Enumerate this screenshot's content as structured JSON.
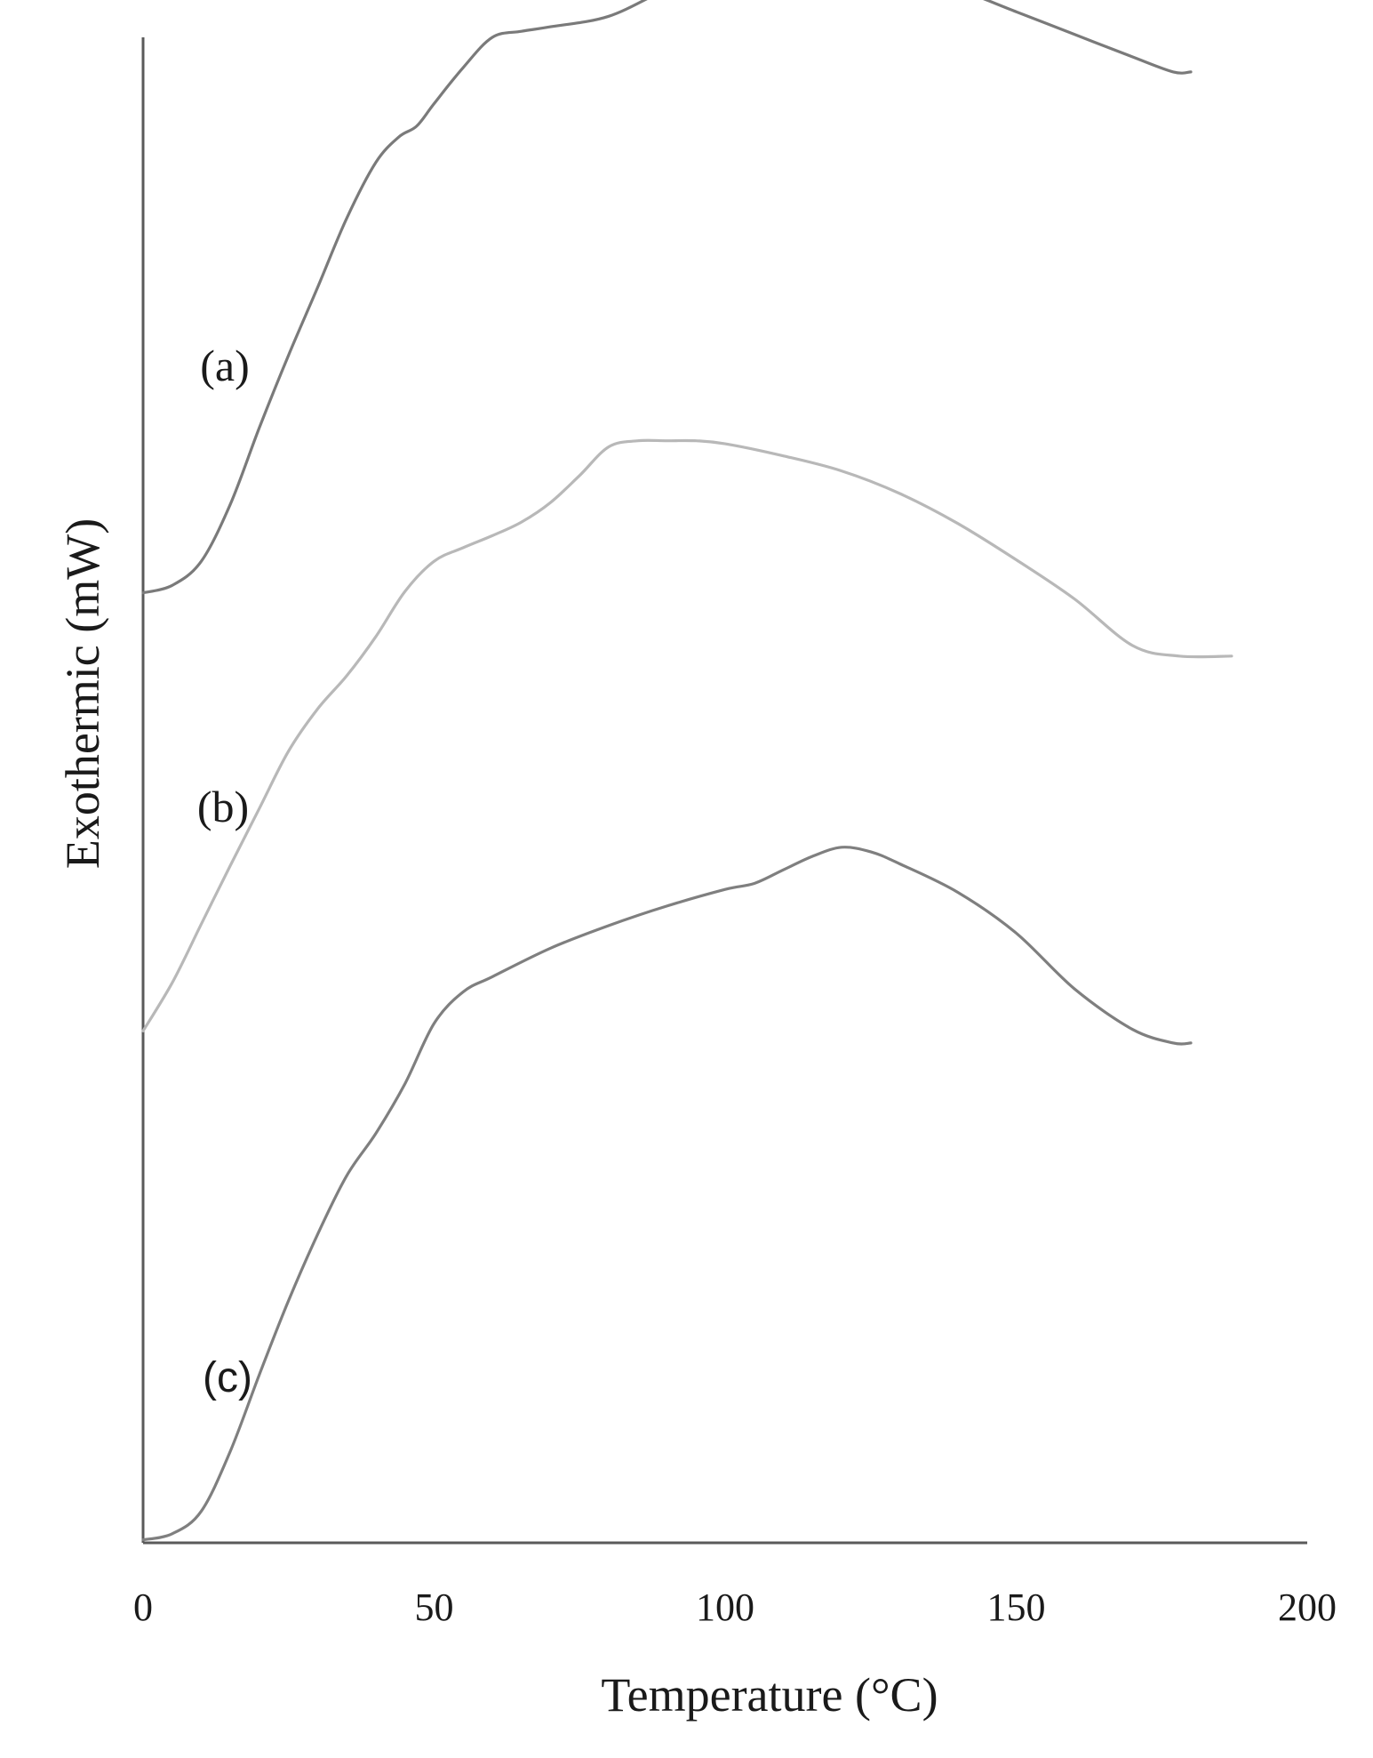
{
  "chart_data": {
    "type": "line",
    "xlabel": "Temperature (°C)",
    "ylabel": "Exothermic (mW)",
    "xlim": [
      0,
      200
    ],
    "x_ticks": [
      "0",
      "50",
      "100",
      "150",
      "200"
    ],
    "y_ticks": [],
    "grid": false,
    "legend": "none",
    "series": [
      {
        "label": "(a)",
        "color": "#7a7a7a",
        "x": [
          0,
          5,
          10,
          15,
          20,
          25,
          30,
          35,
          40,
          44,
          47,
          50,
          55,
          60,
          65,
          70,
          80,
          90,
          100,
          110,
          120,
          130,
          140,
          150,
          160,
          170,
          177,
          180
        ],
        "y": [
          0.631,
          0.636,
          0.652,
          0.69,
          0.741,
          0.789,
          0.834,
          0.88,
          0.917,
          0.934,
          0.941,
          0.956,
          0.98,
          1.0,
          1.004,
          1.007,
          1.014,
          1.032,
          1.047,
          1.054,
          1.052,
          1.043,
          1.032,
          1.017,
          1.002,
          0.987,
          0.977,
          0.977
        ]
      },
      {
        "label": "(b)",
        "color": "#b8b8b8",
        "x": [
          0,
          5,
          10,
          15,
          20,
          25,
          30,
          35,
          40,
          45,
          50,
          55,
          60,
          65,
          70,
          75,
          80,
          85,
          90,
          95,
          100,
          110,
          120,
          130,
          140,
          150,
          160,
          170,
          178,
          187
        ],
        "y": [
          0.34,
          0.372,
          0.411,
          0.45,
          0.488,
          0.526,
          0.554,
          0.576,
          0.602,
          0.632,
          0.652,
          0.661,
          0.669,
          0.678,
          0.691,
          0.709,
          0.728,
          0.732,
          0.732,
          0.732,
          0.73,
          0.722,
          0.712,
          0.697,
          0.677,
          0.653,
          0.627,
          0.596,
          0.589,
          0.589
        ]
      },
      {
        "label": "(c)",
        "color": "#7f7f7f",
        "x": [
          0,
          5,
          10,
          15,
          20,
          25,
          30,
          35,
          40,
          45,
          50,
          55,
          60,
          70,
          80,
          90,
          100,
          105,
          110,
          115,
          120,
          125,
          130,
          140,
          150,
          160,
          170,
          177,
          180
        ],
        "y": [
          0.002,
          0.006,
          0.021,
          0.061,
          0.112,
          0.161,
          0.205,
          0.244,
          0.272,
          0.305,
          0.345,
          0.366,
          0.376,
          0.395,
          0.41,
          0.423,
          0.434,
          0.438,
          0.447,
          0.456,
          0.462,
          0.459,
          0.451,
          0.432,
          0.405,
          0.368,
          0.341,
          0.332,
          0.332
        ]
      }
    ]
  }
}
